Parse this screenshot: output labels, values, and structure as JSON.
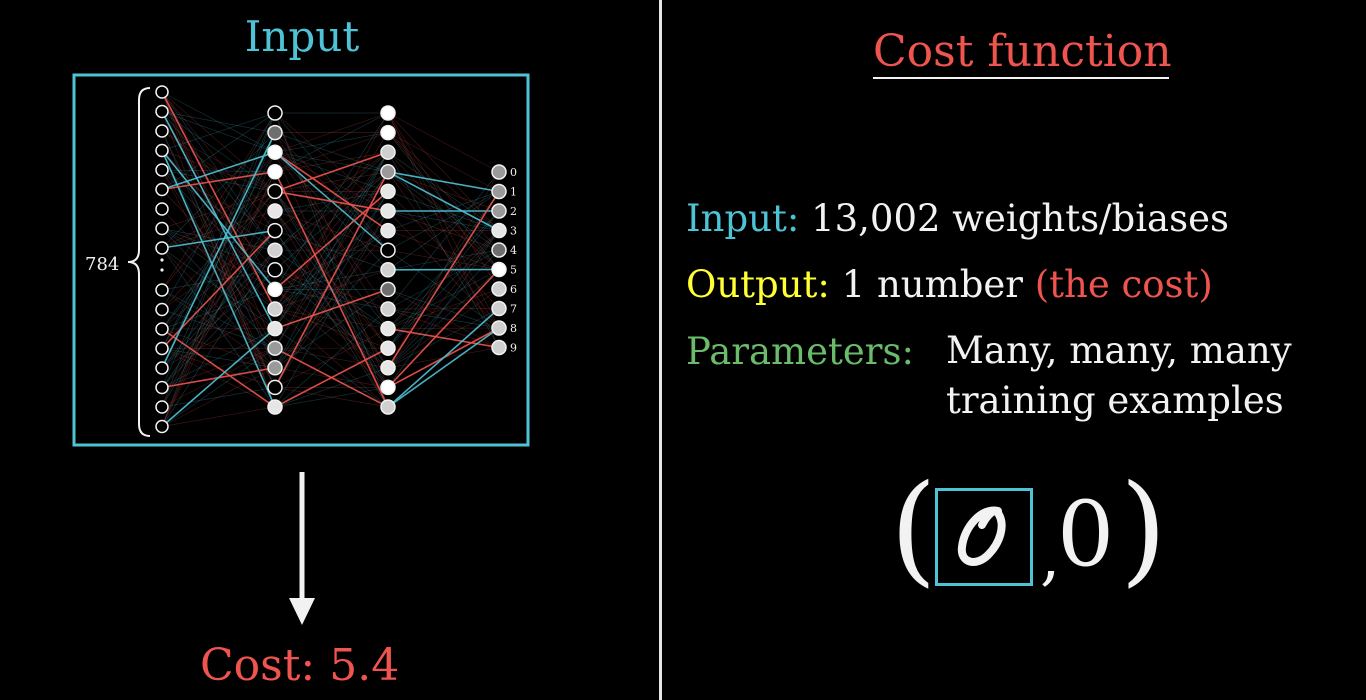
{
  "colors": {
    "background": "#000000",
    "accent_blue": "#4fc3d6",
    "accent_red": "#f0544f",
    "accent_yellow": "#ffff33",
    "accent_green": "#6abb6a",
    "text": "#f2f2f2"
  },
  "network": {
    "title": "Input",
    "input_count_label": "784",
    "output_labels": [
      "0",
      "1",
      "2",
      "3",
      "4",
      "5",
      "6",
      "7",
      "8",
      "9"
    ]
  },
  "result": {
    "cost_text": "Cost: 5.4"
  },
  "cost_function": {
    "title": "Cost function",
    "input_label": "Input:",
    "input_value": "13,002 weights/biases",
    "output_label": "Output:",
    "output_value": "1 number",
    "output_aside": "(the cost)",
    "params_label": "Parameters:",
    "params_line1": "Many, many, many",
    "params_line2": "training examples"
  },
  "example": {
    "open_paren": "(",
    "comma": ",",
    "label": "0",
    "close_paren": ")"
  }
}
